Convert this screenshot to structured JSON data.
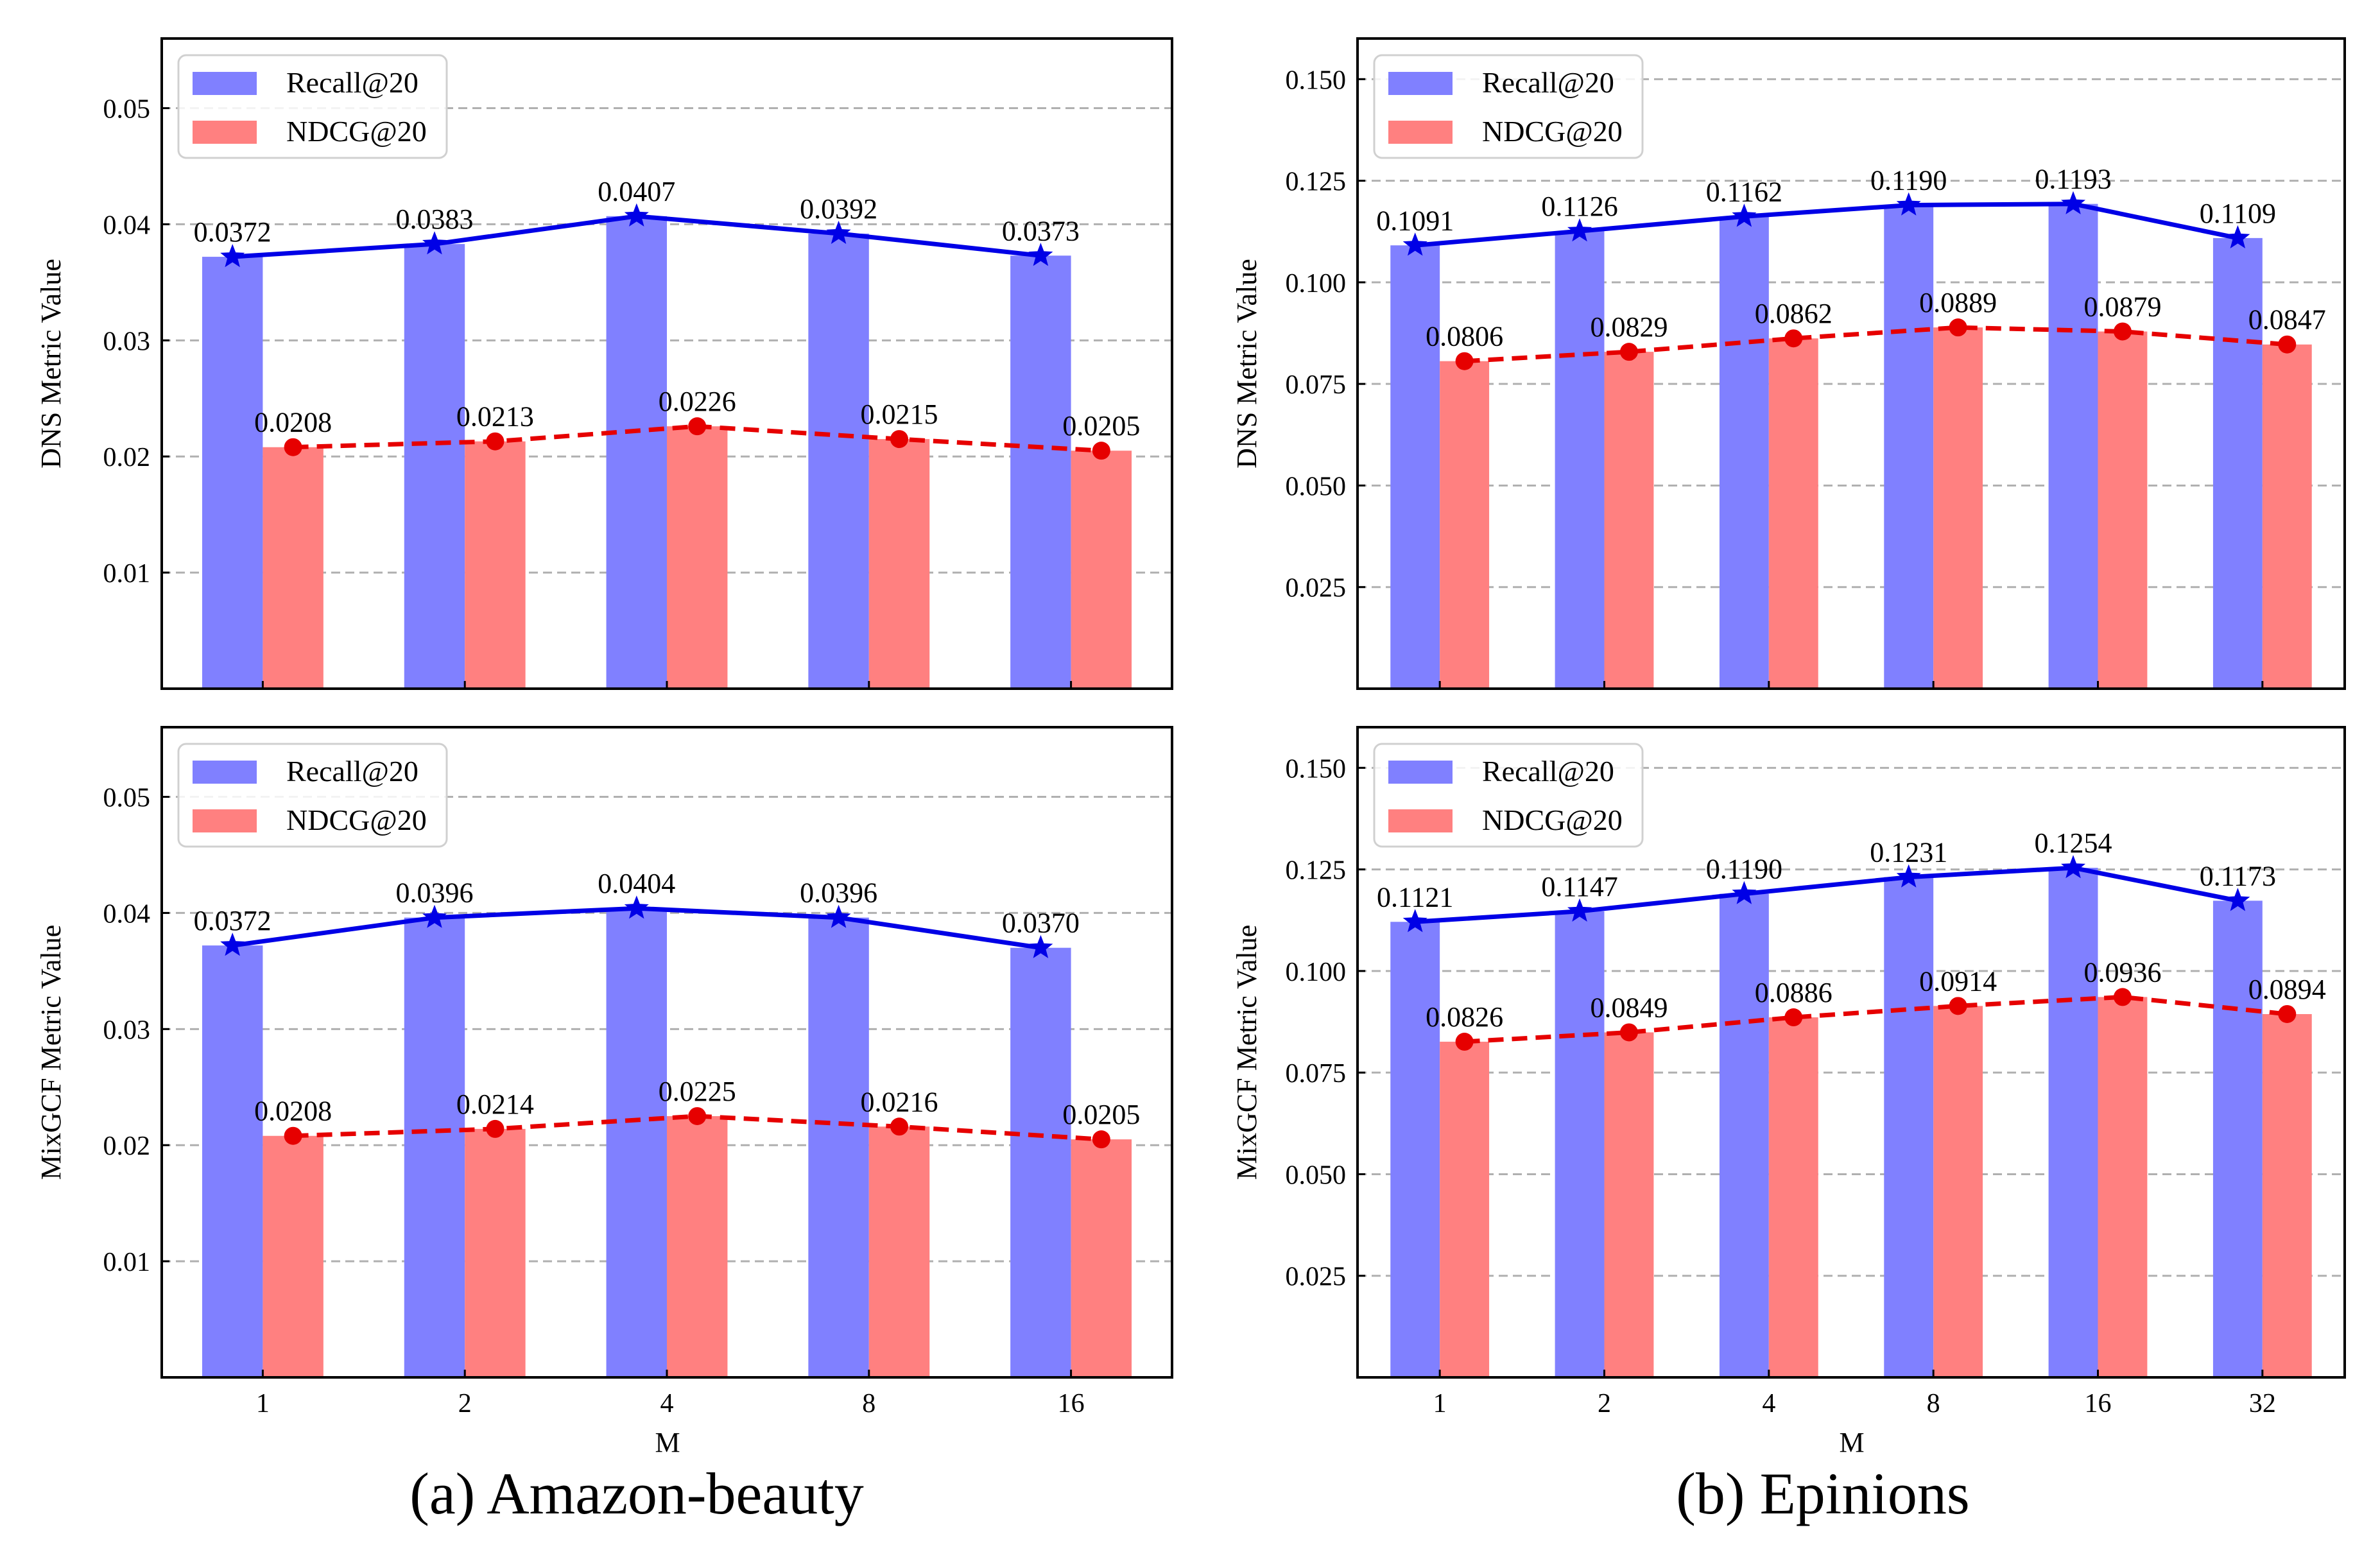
{
  "figure": {
    "captions": [
      "(a) Amazon-beauty",
      "(b) Epinions"
    ],
    "x_axis_label": "M"
  },
  "legend": {
    "recall_label": "Recall@20",
    "ndcg_label": "NDCG@20"
  },
  "colors": {
    "recall_bar": "#8080FF",
    "ndcg_bar": "#FF8080",
    "recall_line": "#0000E6",
    "ndcg_line": "#E60000",
    "grid": "#B0B0B0"
  },
  "chart_data": [
    {
      "id": "amazon-dns",
      "type": "bar",
      "caption": "(a) Amazon-beauty",
      "ylabel": "DNS Metric Value",
      "xlabel": "",
      "categories": [
        "1",
        "2",
        "4",
        "8",
        "16"
      ],
      "ylim": [
        0,
        0.056
      ],
      "yticks": [
        0.01,
        0.02,
        0.03,
        0.04,
        0.05
      ],
      "ytick_labels": [
        "0.01",
        "0.02",
        "0.03",
        "0.04",
        "0.05"
      ],
      "grid": true,
      "legend_position": "top-left",
      "show_xticks": false,
      "series": [
        {
          "name": "Recall@20",
          "values": [
            0.0372,
            0.0383,
            0.0407,
            0.0392,
            0.0373
          ],
          "labels": [
            "0.0372",
            "0.0383",
            "0.0407",
            "0.0392",
            "0.0373"
          ]
        },
        {
          "name": "NDCG@20",
          "values": [
            0.0208,
            0.0213,
            0.0226,
            0.0215,
            0.0205
          ],
          "labels": [
            "0.0208",
            "0.0213",
            "0.0226",
            "0.0215",
            "0.0205"
          ]
        }
      ]
    },
    {
      "id": "amazon-mixgcf",
      "type": "bar",
      "caption": "(a) Amazon-beauty",
      "ylabel": "MixGCF Metric Value",
      "xlabel": "M",
      "categories": [
        "1",
        "2",
        "4",
        "8",
        "16"
      ],
      "ylim": [
        0,
        0.056
      ],
      "yticks": [
        0.01,
        0.02,
        0.03,
        0.04,
        0.05
      ],
      "ytick_labels": [
        "0.01",
        "0.02",
        "0.03",
        "0.04",
        "0.05"
      ],
      "grid": true,
      "legend_position": "top-left",
      "show_xticks": true,
      "series": [
        {
          "name": "Recall@20",
          "values": [
            0.0372,
            0.0396,
            0.0404,
            0.0396,
            0.037
          ],
          "labels": [
            "0.0372",
            "0.0396",
            "0.0404",
            "0.0396",
            "0.0370"
          ]
        },
        {
          "name": "NDCG@20",
          "values": [
            0.0208,
            0.0214,
            0.0225,
            0.0216,
            0.0205
          ],
          "labels": [
            "0.0208",
            "0.0214",
            "0.0225",
            "0.0216",
            "0.0205"
          ]
        }
      ]
    },
    {
      "id": "epinions-dns",
      "type": "bar",
      "caption": "(b) Epinions",
      "ylabel": "DNS Metric Value",
      "xlabel": "",
      "categories": [
        "1",
        "2",
        "4",
        "8",
        "16",
        "32"
      ],
      "ylim": [
        0,
        0.16
      ],
      "yticks": [
        0.025,
        0.05,
        0.075,
        0.1,
        0.125,
        0.15
      ],
      "ytick_labels": [
        "0.025",
        "0.050",
        "0.075",
        "0.100",
        "0.125",
        "0.150"
      ],
      "grid": true,
      "legend_position": "top-left",
      "show_xticks": false,
      "series": [
        {
          "name": "Recall@20",
          "values": [
            0.1091,
            0.1126,
            0.1162,
            0.119,
            0.1193,
            0.1109
          ],
          "labels": [
            "0.1091",
            "0.1126",
            "0.1162",
            "0.1190",
            "0.1193",
            "0.1109"
          ]
        },
        {
          "name": "NDCG@20",
          "values": [
            0.0806,
            0.0829,
            0.0862,
            0.0889,
            0.0879,
            0.0847
          ],
          "labels": [
            "0.0806",
            "0.0829",
            "0.0862",
            "0.0889",
            "0.0879",
            "0.0847"
          ]
        }
      ]
    },
    {
      "id": "epinions-mixgcf",
      "type": "bar",
      "caption": "(b) Epinions",
      "ylabel": "MixGCF Metric Value",
      "xlabel": "M",
      "categories": [
        "1",
        "2",
        "4",
        "8",
        "16",
        "32"
      ],
      "ylim": [
        0,
        0.16
      ],
      "yticks": [
        0.025,
        0.05,
        0.075,
        0.1,
        0.125,
        0.15
      ],
      "ytick_labels": [
        "0.025",
        "0.050",
        "0.075",
        "0.100",
        "0.125",
        "0.150"
      ],
      "grid": true,
      "legend_position": "top-left",
      "show_xticks": true,
      "series": [
        {
          "name": "Recall@20",
          "values": [
            0.1121,
            0.1147,
            0.119,
            0.1231,
            0.1254,
            0.1173
          ],
          "labels": [
            "0.1121",
            "0.1147",
            "0.1190",
            "0.1231",
            "0.1254",
            "0.1173"
          ]
        },
        {
          "name": "NDCG@20",
          "values": [
            0.0826,
            0.0849,
            0.0886,
            0.0914,
            0.0936,
            0.0894
          ],
          "labels": [
            "0.0826",
            "0.0849",
            "0.0886",
            "0.0914",
            "0.0936",
            "0.0894"
          ]
        }
      ]
    }
  ]
}
